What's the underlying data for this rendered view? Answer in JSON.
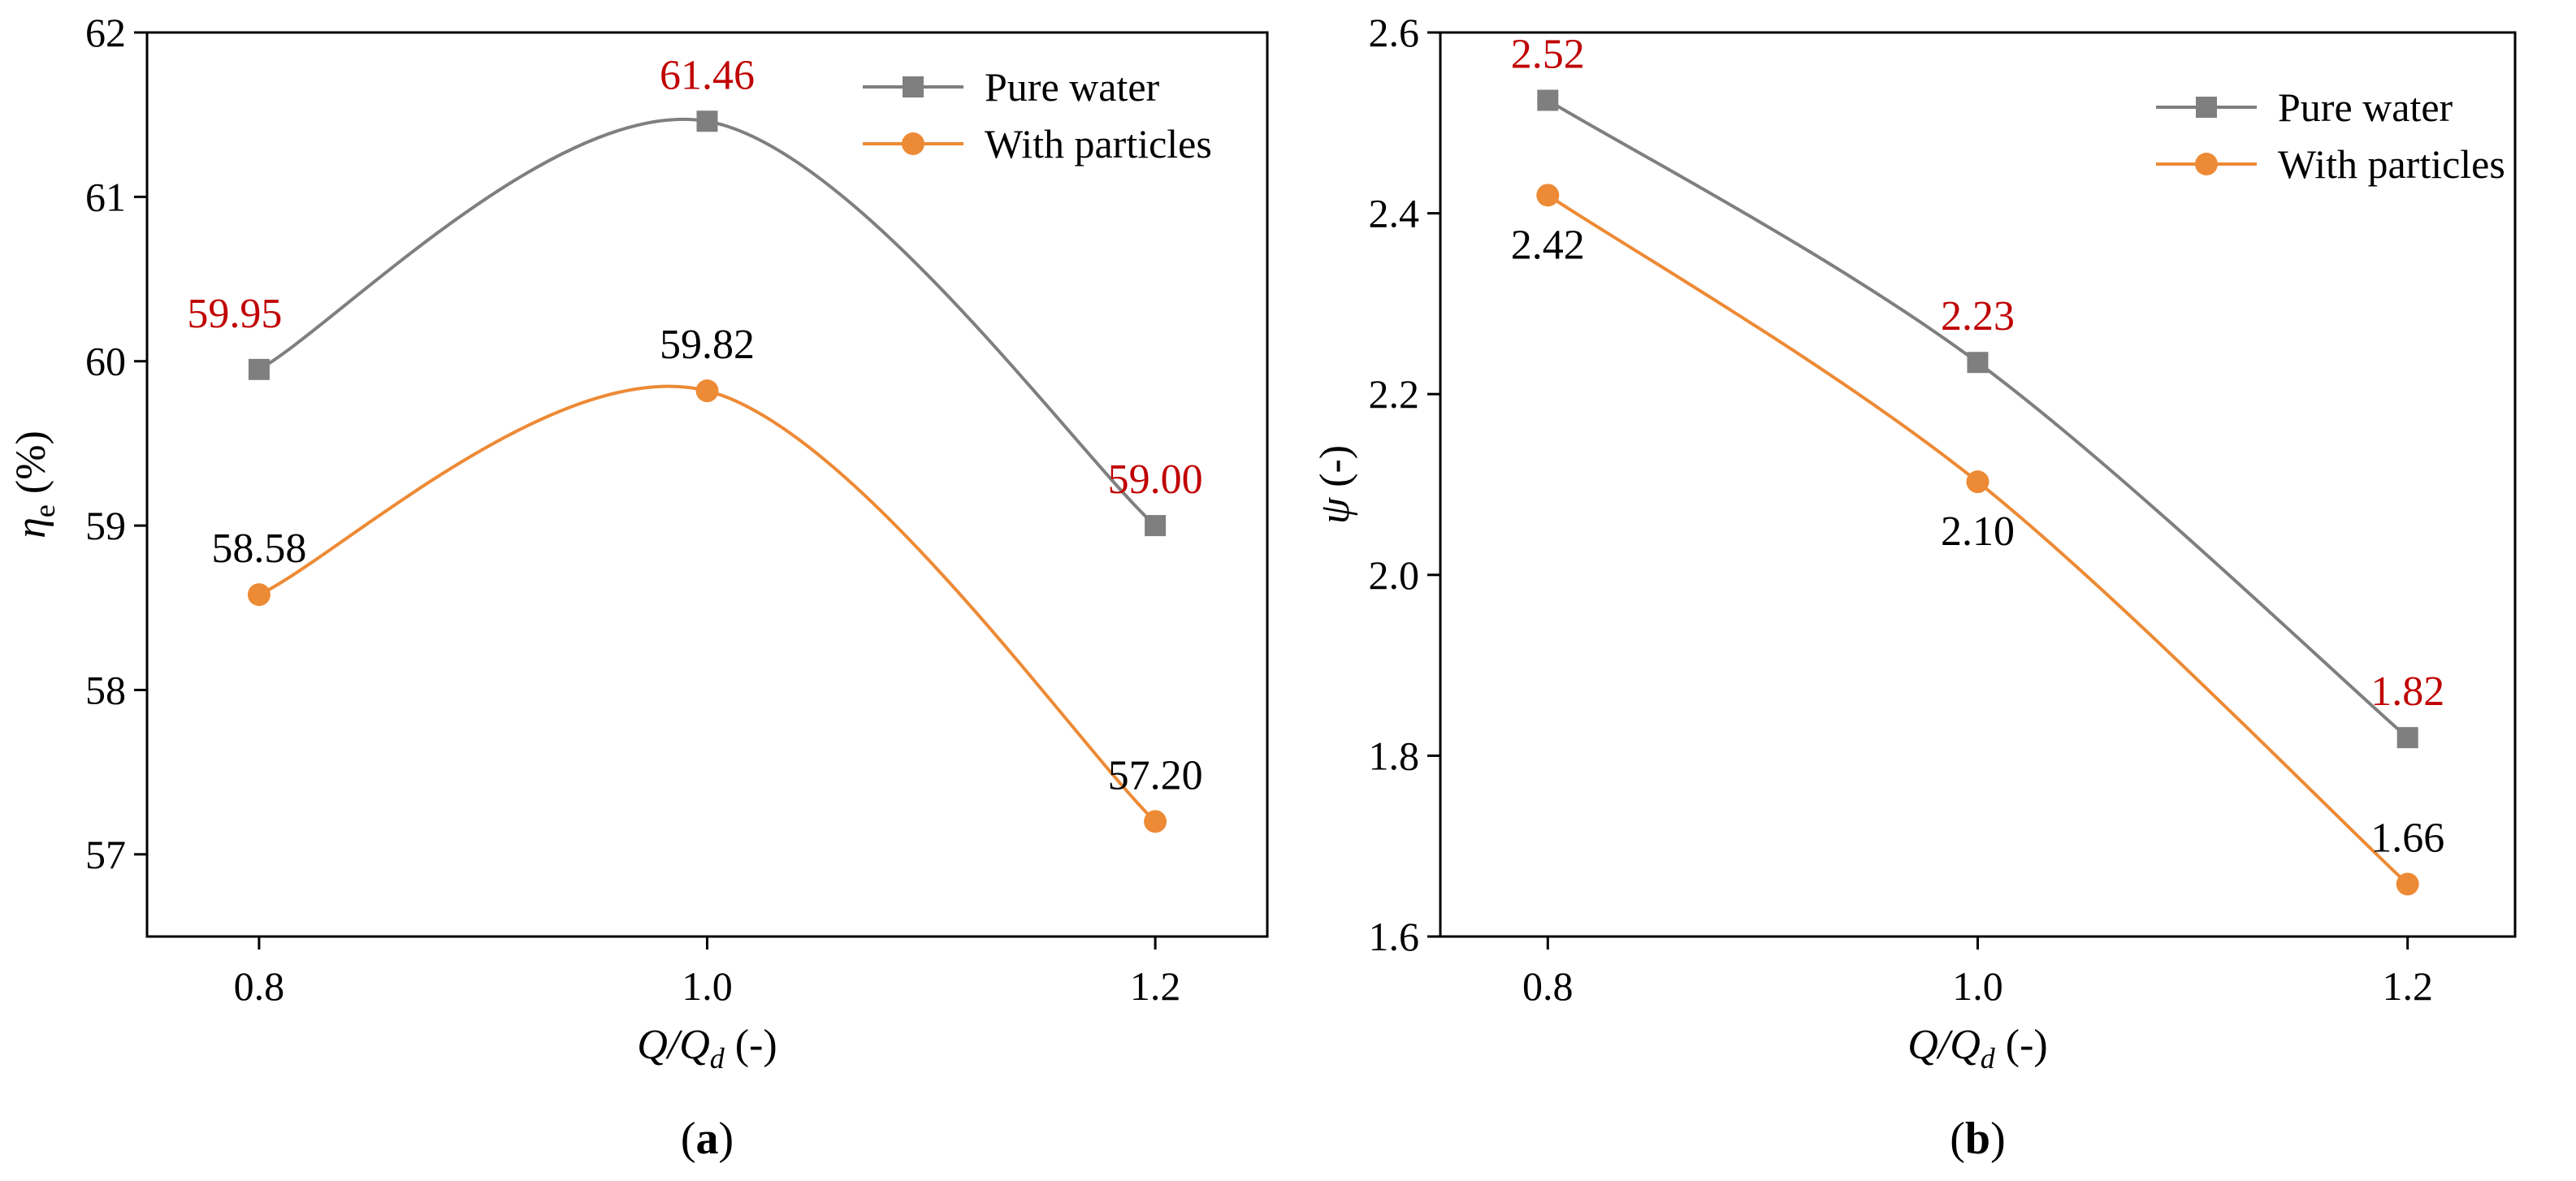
{
  "colors": {
    "pure_water": "#7f7f7f",
    "with_particles": "#ed8a35",
    "highlight_label": "#c00000",
    "normal_label": "#000000"
  },
  "chart_data": [
    {
      "id": "a",
      "type": "line",
      "panel_label": "(a)",
      "x": [
        0.8,
        1.0,
        1.2
      ],
      "x_ticks": [
        "0.8",
        "1.0",
        "1.2"
      ],
      "xlim": [
        0.75,
        1.25
      ],
      "xlabel": {
        "main": "Q/Q",
        "sub": "d",
        "unit": " (-)"
      },
      "ylabel": {
        "main": "η",
        "sub": "e",
        "unit": " (%)"
      },
      "ylim": [
        56.5,
        62
      ],
      "y_ticks": [
        "57",
        "58",
        "59",
        "60",
        "61",
        "62"
      ],
      "legend": {
        "position": "top-right",
        "entries": [
          "Pure water",
          "With particles"
        ]
      },
      "series": [
        {
          "name": "Pure water",
          "marker": "square",
          "color": "#7f7f7f",
          "values": [
            59.95,
            61.46,
            59.0
          ],
          "labels": [
            "59.95",
            "61.46",
            "59.00"
          ],
          "label_colors": [
            "#c00000",
            "#c00000",
            "#c00000"
          ],
          "label_pos": [
            "above-left",
            "above",
            "above"
          ]
        },
        {
          "name": "With particles",
          "marker": "circle",
          "color": "#ed8a35",
          "values": [
            58.58,
            59.82,
            57.2
          ],
          "labels": [
            "58.58",
            "59.82",
            "57.20"
          ],
          "label_colors": [
            "#000000",
            "#000000",
            "#000000"
          ],
          "label_pos": [
            "above",
            "above",
            "above"
          ]
        }
      ]
    },
    {
      "id": "b",
      "type": "line",
      "panel_label": "(b)",
      "x": [
        0.8,
        1.0,
        1.2
      ],
      "x_ticks": [
        "0.8",
        "1.0",
        "1.2"
      ],
      "xlim": [
        0.75,
        1.25
      ],
      "xlabel": {
        "main": "Q/Q",
        "sub": "d",
        "unit": " (-)"
      },
      "ylabel": {
        "main": "ψ",
        "sub": "",
        "unit": " (-)"
      },
      "ylim": [
        1.6,
        2.6
      ],
      "y_ticks": [
        "1.6",
        "1.8",
        "2.0",
        "2.2",
        "2.4",
        "2.6"
      ],
      "legend": {
        "position": "top-right",
        "entries": [
          "Pure water",
          "With particles"
        ]
      },
      "series": [
        {
          "name": "Pure water",
          "marker": "square",
          "color": "#7f7f7f",
          "values": [
            2.525,
            2.235,
            1.82
          ],
          "labels": [
            "2.52",
            "2.23",
            "1.82"
          ],
          "label_colors": [
            "#c00000",
            "#c00000",
            "#c00000"
          ],
          "label_pos": [
            "above",
            "above",
            "above"
          ]
        },
        {
          "name": "With particles",
          "marker": "circle",
          "color": "#ed8a35",
          "values": [
            2.42,
            2.103,
            1.658
          ],
          "labels": [
            "2.42",
            "2.10",
            "1.66"
          ],
          "label_colors": [
            "#000000",
            "#000000",
            "#000000"
          ],
          "label_pos": [
            "below",
            "below",
            "above"
          ]
        }
      ]
    }
  ]
}
